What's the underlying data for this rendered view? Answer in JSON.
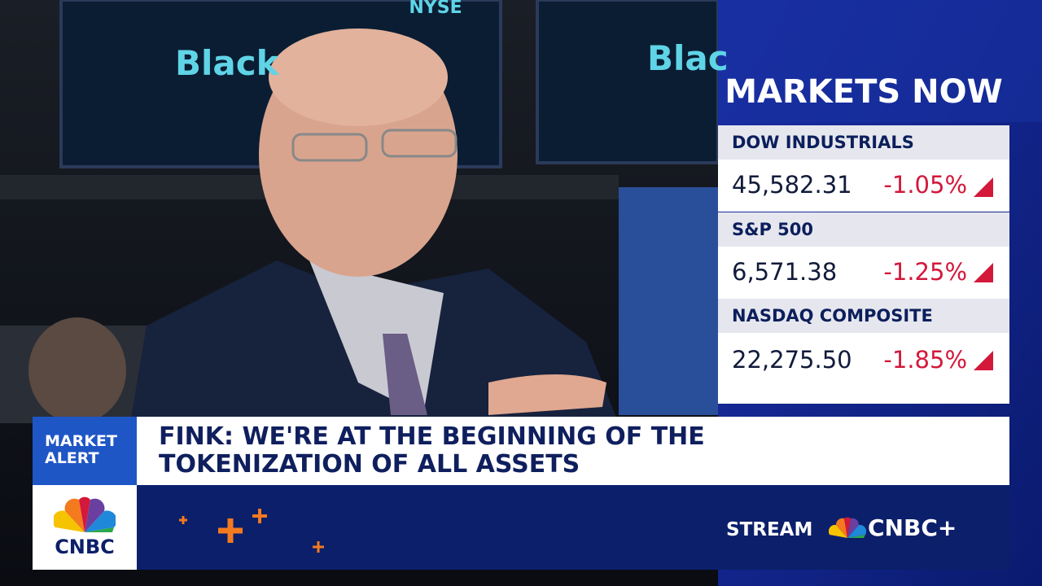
{
  "background": {
    "screen_texts": [
      "NYSE",
      "Black",
      "Blac"
    ]
  },
  "markets": {
    "title": "MARKETS NOW",
    "items": [
      {
        "name": "DOW INDUSTRIALS",
        "value": "45,582.31",
        "change": "-1.05%"
      },
      {
        "name": "S&P 500",
        "value": "6,571.38",
        "change": "-1.25%"
      },
      {
        "name": "NASDAQ COMPOSITE",
        "value": "22,275.50",
        "change": "-1.85%"
      }
    ]
  },
  "lower_third": {
    "tag": [
      "MARKET",
      "ALERT"
    ],
    "headline": [
      "FINK: WE'RE AT THE BEGINNING OF THE",
      "TOKENIZATION OF ALL ASSETS"
    ],
    "logo": "CNBC",
    "stream": "STREAM",
    "stream_brand": "CNBC+"
  }
}
